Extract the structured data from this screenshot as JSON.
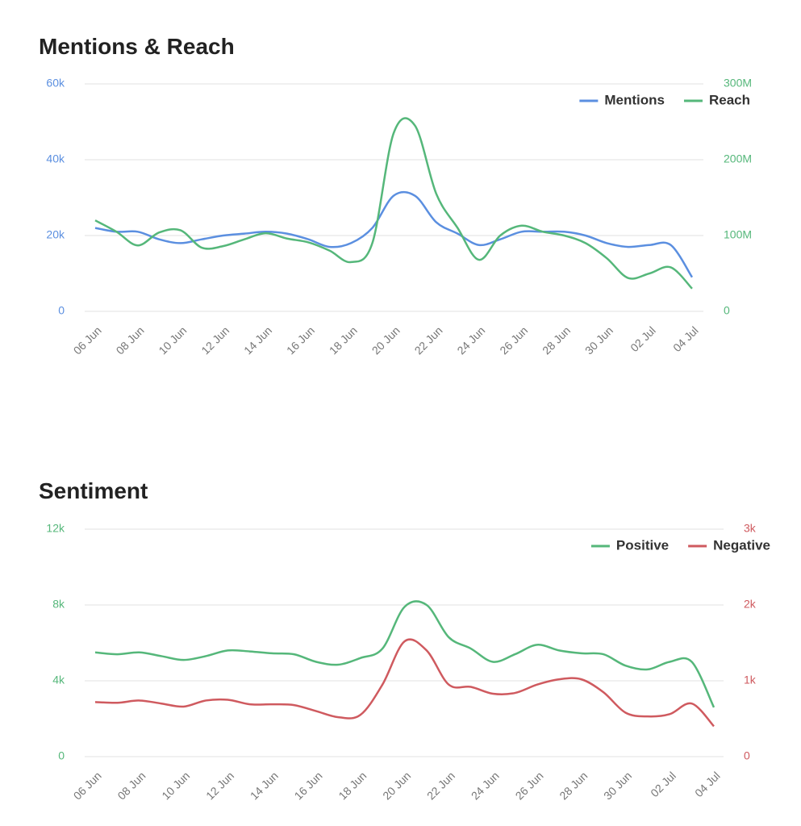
{
  "chart_data": [
    {
      "type": "line",
      "title": "Mentions & Reach",
      "categories": [
        "06 Jun",
        null,
        "08 Jun",
        null,
        "10 Jun",
        null,
        "12 Jun",
        null,
        "14 Jun",
        null,
        "16 Jun",
        null,
        "18 Jun",
        null,
        "20 Jun",
        null,
        "22 Jun",
        null,
        "24 Jun",
        null,
        "26 Jun",
        null,
        "28 Jun",
        null,
        "30 Jun",
        null,
        "02 Jul",
        null,
        "04 Jul"
      ],
      "series": [
        {
          "name": "Mentions",
          "color": "#5b8fe0",
          "axis": "y",
          "values": [
            22000,
            21000,
            21000,
            19000,
            18000,
            19000,
            20000,
            20500,
            21000,
            20500,
            19000,
            17000,
            18000,
            22000,
            30500,
            30500,
            23500,
            20500,
            17500,
            19000,
            21000,
            21000,
            21000,
            20000,
            18000,
            17000,
            17500,
            17500,
            9000
          ]
        },
        {
          "name": "Reach",
          "color": "#55b77a",
          "axis": "y2",
          "values": [
            120000000,
            105000000,
            87000000,
            104000000,
            107000000,
            84000000,
            86000000,
            95000000,
            103000000,
            96000000,
            91000000,
            80000000,
            65000000,
            90000000,
            235000000,
            245000000,
            155000000,
            110000000,
            68000000,
            100000000,
            113000000,
            105000000,
            100000000,
            90000000,
            70000000,
            44000000,
            50000000,
            58000000,
            30000000
          ]
        }
      ],
      "ylim": [
        0,
        60000
      ],
      "yticks": [
        0,
        {
          "value": 20000,
          "label": "20k"
        },
        {
          "value": 40000,
          "label": "40k"
        },
        {
          "value": 60000,
          "label": "60k"
        }
      ],
      "y2lim": [
        0,
        300000000
      ],
      "y2ticks": [
        0,
        {
          "value": 100000000,
          "label": "100M"
        },
        {
          "value": 200000000,
          "label": "200M"
        },
        {
          "value": 300000000,
          "label": "300M"
        }
      ],
      "grid": true,
      "legend": "top-right"
    },
    {
      "type": "line",
      "title": "Sentiment",
      "categories": [
        "06 Jun",
        null,
        "08 Jun",
        null,
        "10 Jun",
        null,
        "12 Jun",
        null,
        "14 Jun",
        null,
        "16 Jun",
        null,
        "18 Jun",
        null,
        "20 Jun",
        null,
        "22 Jun",
        null,
        "24 Jun",
        null,
        "26 Jun",
        null,
        "28 Jun",
        null,
        "30 Jun",
        null,
        "02 Jul",
        null,
        "04 Jul"
      ],
      "series": [
        {
          "name": "Positive",
          "color": "#55b77a",
          "axis": "y",
          "values": [
            5500,
            5400,
            5500,
            5300,
            5100,
            5300,
            5600,
            5550,
            5450,
            5400,
            5000,
            4850,
            5200,
            5700,
            7900,
            8000,
            6300,
            5700,
            5000,
            5400,
            5900,
            5600,
            5450,
            5400,
            4800,
            4600,
            5000,
            5000,
            2600
          ]
        },
        {
          "name": "Negative",
          "color": "#cf5a5f",
          "axis": "y2",
          "values": [
            720,
            710,
            740,
            700,
            660,
            740,
            750,
            690,
            690,
            680,
            600,
            520,
            550,
            950,
            1520,
            1400,
            950,
            920,
            830,
            840,
            950,
            1020,
            1020,
            850,
            580,
            530,
            560,
            700,
            400
          ]
        }
      ],
      "ylim": [
        0,
        12000
      ],
      "yticks": [
        0,
        {
          "value": 4000,
          "label": "4k"
        },
        {
          "value": 8000,
          "label": "8k"
        },
        {
          "value": 12000,
          "label": "12k"
        }
      ],
      "y2lim": [
        0,
        3000
      ],
      "y2ticks": [
        0,
        {
          "value": 1000,
          "label": "1k"
        },
        {
          "value": 2000,
          "label": "2k"
        },
        {
          "value": 3000,
          "label": "3k"
        }
      ],
      "grid": true,
      "legend": "top-right"
    }
  ]
}
